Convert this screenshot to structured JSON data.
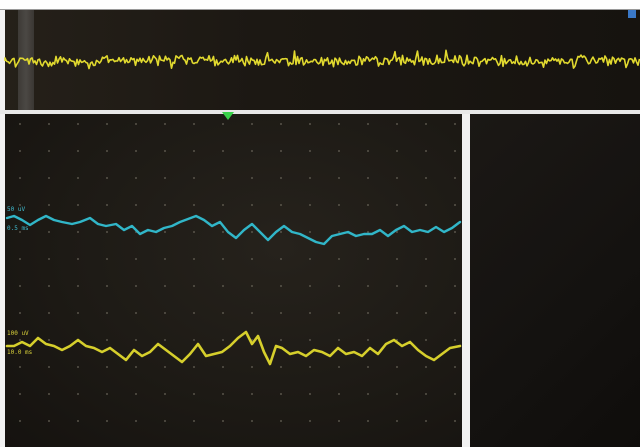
{
  "colors": {
    "top_trace": "#e1d92f",
    "channel_1_trace": "#31b6c8",
    "channel_2_trace": "#d6cf2c",
    "grid_dot": "#6a655a",
    "trigger_marker": "#39d24a",
    "indicator": "#3a78c7"
  },
  "icons": {
    "trigger_marker": "triangle-down",
    "corner_indicator": "square"
  },
  "channels": [
    {
      "id": "ch1",
      "amplitude_label": "50 uV",
      "sweep_label": "0.5 ms",
      "color": "#31b6c8"
    },
    {
      "id": "ch2",
      "amplitude_label": "100 uV",
      "sweep_label": "10.0 ms",
      "color": "#d6cf2c"
    }
  ]
}
